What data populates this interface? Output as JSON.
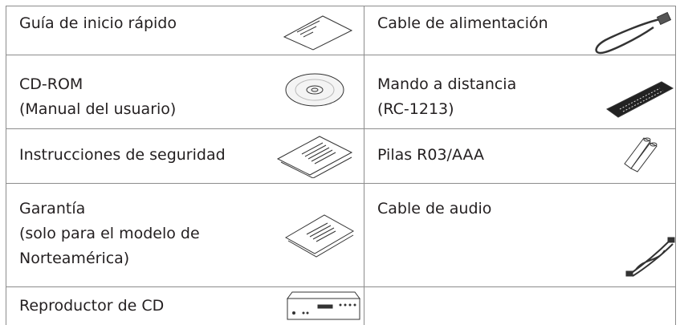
{
  "table": {
    "rows": [
      {
        "left": {
          "lines": [
            "Guía de inicio rápido"
          ]
        },
        "right": {
          "lines": [
            "Cable de alimentación"
          ]
        }
      },
      {
        "left": {
          "lines": [
            "CD-ROM",
            "(Manual del usuario)"
          ]
        },
        "right": {
          "lines": [
            "Mando a distancia",
            "(RC-1213)"
          ]
        }
      },
      {
        "left": {
          "lines": [
            "Instrucciones de seguridad"
          ]
        },
        "right": {
          "lines": [
            "Pilas R03/AAA"
          ]
        }
      },
      {
        "left": {
          "lines": [
            "Garantía",
            "(solo para el modelo de",
            "Norteamérica)"
          ]
        },
        "right": {
          "lines": [
            "Cable de audio"
          ]
        }
      },
      {
        "left": {
          "lines": [
            "Reproductor de CD"
          ]
        }
      }
    ]
  }
}
